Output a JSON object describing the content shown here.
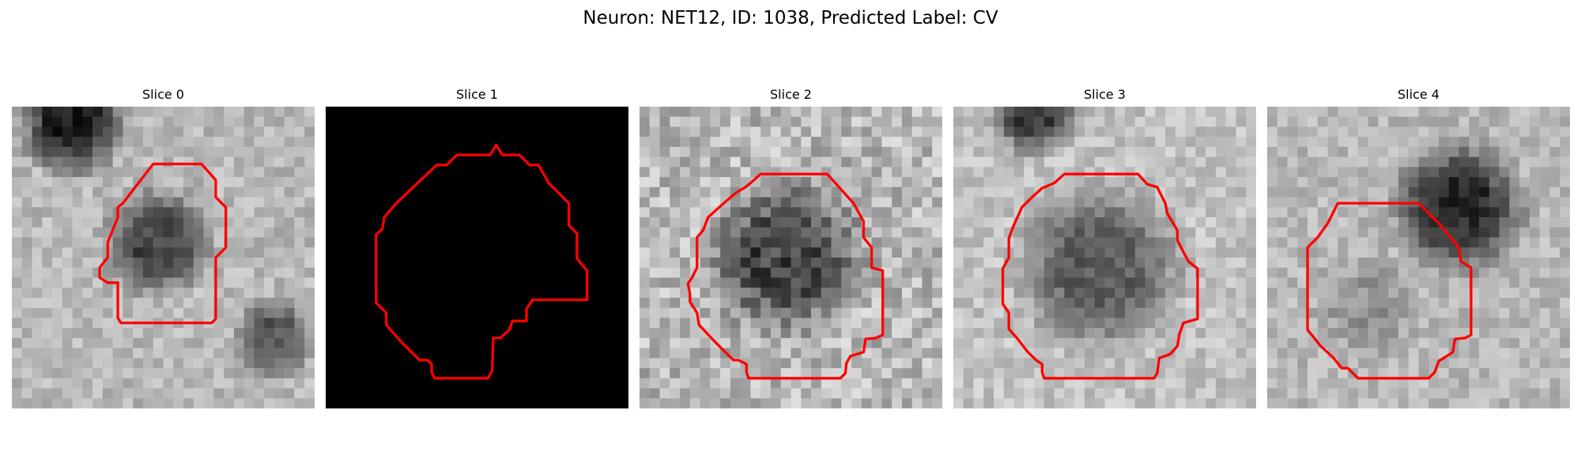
{
  "figure": {
    "title": "Neuron: NET12, ID: 1038, Predicted Label: CV"
  },
  "panels": [
    {
      "title": "Slice 0",
      "content": "grayscale-noise-with-dark-blob",
      "outline_color": "#ff0000"
    },
    {
      "title": "Slice 1",
      "content": "black-background",
      "outline_color": "#ff0000"
    },
    {
      "title": "Slice 2",
      "content": "grayscale-noise-with-dark-blob",
      "outline_color": "#ff0000"
    },
    {
      "title": "Slice 3",
      "content": "grayscale-noise-with-dark-blob",
      "outline_color": "#ff0000"
    },
    {
      "title": "Slice 4",
      "content": "grayscale-noise-with-dark-blob",
      "outline_color": "#ff0000"
    }
  ]
}
